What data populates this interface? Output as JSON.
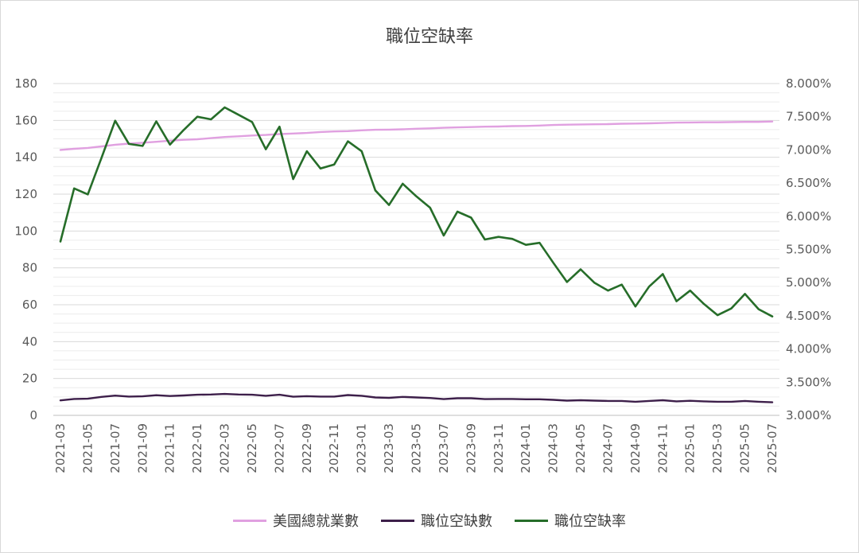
{
  "chart_data": {
    "type": "line",
    "title": "職位空缺率",
    "y_left": {
      "min": 0,
      "max": 180,
      "step": 20,
      "ticks": [
        "0",
        "20",
        "40",
        "60",
        "80",
        "100",
        "120",
        "140",
        "160",
        "180"
      ]
    },
    "y_right": {
      "min": 3.0,
      "max": 8.0,
      "step": 0.5,
      "ticks": [
        "3.000%",
        "3.500%",
        "4.000%",
        "4.500%",
        "5.000%",
        "5.500%",
        "6.000%",
        "6.500%",
        "7.000%",
        "7.500%",
        "8.000%"
      ]
    },
    "x": [
      "2021-03",
      "2021-04",
      "2021-05",
      "2021-06",
      "2021-07",
      "2021-08",
      "2021-09",
      "2021-10",
      "2021-11",
      "2021-12",
      "2022-01",
      "2022-02",
      "2022-03",
      "2022-04",
      "2022-05",
      "2022-06",
      "2022-07",
      "2022-08",
      "2022-09",
      "2022-10",
      "2022-11",
      "2022-12",
      "2023-01",
      "2023-02",
      "2023-03",
      "2023-04",
      "2023-05",
      "2023-06",
      "2023-07",
      "2023-08",
      "2023-09",
      "2023-10",
      "2023-11",
      "2023-12",
      "2024-01",
      "2024-02",
      "2024-03",
      "2024-04",
      "2024-05",
      "2024-06",
      "2024-07",
      "2024-08",
      "2024-09",
      "2024-10",
      "2024-11",
      "2024-12",
      "2025-01",
      "2025-02",
      "2025-03",
      "2025-04",
      "2025-05",
      "2025-06",
      "2025-07"
    ],
    "x_tick_labels": [
      "2021-03",
      "2021-05",
      "2021-07",
      "2021-09",
      "2021-11",
      "2022-01",
      "2022-03",
      "2022-05",
      "2022-07",
      "2022-09",
      "2022-11",
      "2023-01",
      "2023-03",
      "2023-05",
      "2023-07",
      "2023-09",
      "2023-11",
      "2024-01",
      "2024-03",
      "2024-05",
      "2024-07",
      "2024-09",
      "2024-11",
      "2025-01",
      "2025-03",
      "2025-05",
      "2025-07"
    ],
    "series": [
      {
        "name": "美國總就業數",
        "axis": "left",
        "color": "#e0a0e0",
        "values": [
          144,
          144.6,
          145.1,
          145.9,
          146.8,
          147.4,
          147.9,
          148.4,
          149,
          149.5,
          149.8,
          150.4,
          151,
          151.4,
          151.8,
          152.1,
          152.6,
          152.9,
          153.2,
          153.7,
          154,
          154.2,
          154.6,
          154.9,
          155,
          155.2,
          155.5,
          155.7,
          156,
          156.2,
          156.4,
          156.6,
          156.7,
          156.9,
          157,
          157.2,
          157.5,
          157.7,
          157.8,
          157.9,
          158,
          158.2,
          158.3,
          158.4,
          158.6,
          158.8,
          158.9,
          159,
          159,
          159.1,
          159.2,
          159.2,
          159.4
        ]
      },
      {
        "name": "職位空缺數",
        "axis": "left",
        "color": "#3d1f4a",
        "values": [
          8.1,
          8.9,
          9,
          10,
          10.7,
          10.2,
          10.3,
          10.9,
          10.5,
          10.8,
          11.2,
          11.3,
          11.6,
          11.3,
          11.2,
          10.6,
          11.2,
          10.1,
          10.4,
          10.2,
          10.2,
          11,
          10.6,
          9.7,
          9.5,
          10,
          9.7,
          9.4,
          8.8,
          9.3,
          9.3,
          8.8,
          8.9,
          8.9,
          8.7,
          8.7,
          8.4,
          8,
          8.2,
          8,
          7.8,
          7.8,
          7.4,
          7.8,
          8.2,
          7.6,
          7.9,
          7.6,
          7.4,
          7.4,
          7.8,
          7.4,
          7.1
        ]
      },
      {
        "name": "職位空缺率",
        "axis": "right",
        "color": "#266d29",
        "values": [
          5.62,
          6.42,
          6.33,
          6.88,
          7.44,
          7.09,
          7.06,
          7.43,
          7.08,
          7.3,
          7.5,
          7.46,
          7.64,
          7.53,
          7.42,
          7.01,
          7.35,
          6.56,
          6.98,
          6.72,
          6.78,
          7.13,
          6.98,
          6.39,
          6.17,
          6.49,
          6.3,
          6.13,
          5.71,
          6.07,
          5.98,
          5.65,
          5.69,
          5.66,
          5.57,
          5.6,
          5.3,
          5.01,
          5.2,
          5.0,
          4.88,
          4.97,
          4.64,
          4.94,
          5.13,
          4.72,
          4.88,
          4.68,
          4.51,
          4.61,
          4.83,
          4.6,
          4.49
        ]
      }
    ],
    "grid": true,
    "legend_position": "bottom"
  }
}
